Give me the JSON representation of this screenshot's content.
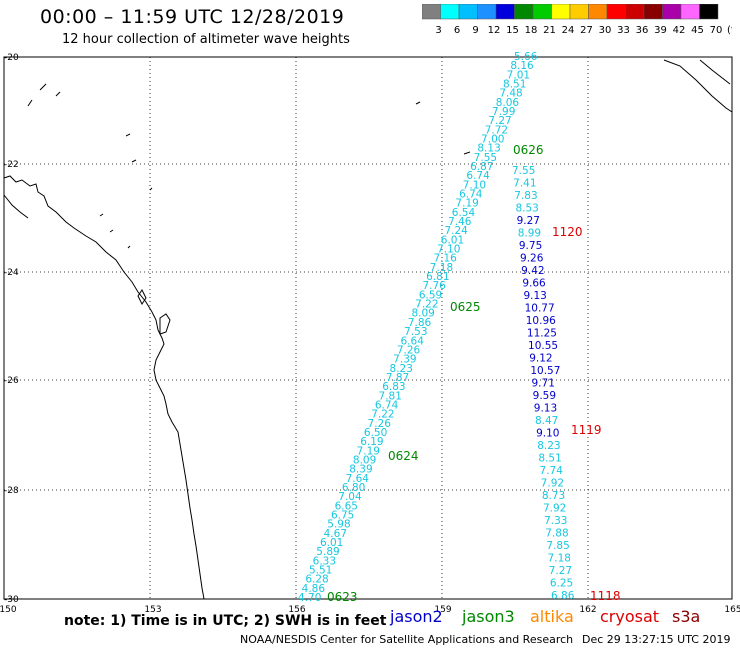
{
  "title": "00:00 – 11:59 UTC 12/28/2019",
  "subtitle": "12 hour collection of altimeter wave heights",
  "legend": {
    "colors": [
      "#808080",
      "#00ffff",
      "#00bfff",
      "#1e90ff",
      "#0000dd",
      "#008800",
      "#00cc00",
      "#ffff00",
      "#ffcc00",
      "#ff8800",
      "#ff0000",
      "#cc0000",
      "#880000",
      "#aa00aa",
      "#ff66ff",
      "#000000"
    ],
    "labels": [
      "3",
      "6",
      "9",
      "12",
      "15",
      "18",
      "21",
      "24",
      "27",
      "30",
      "33",
      "36",
      "39",
      "42",
      "45",
      "70",
      "(ft)"
    ]
  },
  "axes": {
    "lon_ticks": [
      "150",
      "153",
      "156",
      "159",
      "162",
      "165"
    ],
    "lat_ticks": [
      "-20",
      "-22",
      "-24",
      "-26",
      "-28",
      "-30"
    ]
  },
  "passes": [
    {
      "id": "jason3-east-left",
      "color": "#17c7e0",
      "values": [
        "5.66",
        "8.16",
        "7.01",
        "8.51",
        "7.48",
        "8.06",
        "7.99",
        "7.27",
        "7.72",
        "7.00",
        "8.13",
        "7.55",
        "6.87",
        "6.74",
        "7.10",
        "6.74",
        "7.19",
        "6.54",
        "7.46",
        "7.24",
        "6.01",
        "7.10",
        "7.16",
        "7.18",
        "6.81",
        "7.76",
        "6.59",
        "7.22",
        "8.09",
        "7.86",
        "7.53",
        "6.64",
        "7.26",
        "7.39",
        "8.23",
        "7.87",
        "6.83",
        "7.81",
        "6.74",
        "7.22",
        "7.26",
        "6.50",
        "6.19",
        "7.19",
        "8.09",
        "8.39",
        "7.64",
        "6.80",
        "7.04",
        "6.65",
        "6.75",
        "5.98",
        "4.67",
        "6.01",
        "5.89",
        "6.33",
        "5.51",
        "6.28",
        "4.86",
        "4.70"
      ]
    },
    {
      "id": "jason2-right",
      "color": "#17c7e0",
      "values": [
        "7.55",
        "7.41",
        "7.83",
        "8.53",
        "9.27",
        "8.99",
        "9.75",
        "9.26",
        "9.42",
        "9.66",
        "9.13",
        "10.77",
        "10.96",
        "11.25",
        "10.55",
        "9.12",
        "10.57",
        "9.71",
        "9.59",
        "9.13",
        "8.47",
        "9.10",
        "8.23",
        "8.51",
        "7.74",
        "7.92",
        "8.73",
        "7.92",
        "7.33",
        "7.88",
        "7.85",
        "7.18",
        "7.27",
        "6.25",
        "6.86"
      ]
    },
    {
      "id": "time-labels-green",
      "color": "#008800",
      "values": [
        "0626",
        "0625",
        "0624",
        "0623"
      ]
    },
    {
      "id": "time-labels-red",
      "color": "#dd0000",
      "values": [
        "1120",
        "1119",
        "1118"
      ]
    }
  ],
  "note": "note: 1) Time is in UTC; 2) SWH is in feet",
  "satellites": [
    {
      "name": "jason2",
      "color": "#0000cc"
    },
    {
      "name": "jason3",
      "color": "#008800"
    },
    {
      "name": "altika",
      "color": "#ff8800"
    },
    {
      "name": "cryosat",
      "color": "#dd0000"
    },
    {
      "name": "s3a",
      "color": "#880000"
    }
  ],
  "credit": "NOAA/NESDIS Center for Satellite Applications and Research",
  "stamp": "Dec 29 13:27:15 UTC 2019"
}
